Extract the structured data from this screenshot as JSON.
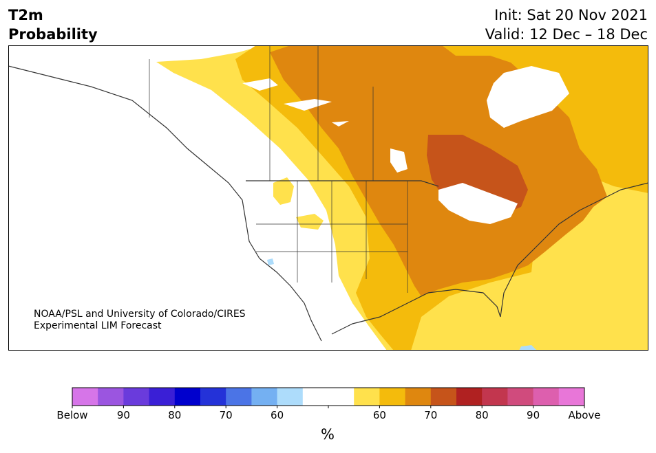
{
  "header": {
    "variable_line1": "T2m",
    "variable_line2": "Probability",
    "init_line": "Init: Sat 20 Nov 2021",
    "valid_line": "Valid: 12 Dec – 18 Dec"
  },
  "credit": {
    "line1": "NOAA/PSL and University of Colorado/CIRES",
    "line2": "Experimental LIM Forecast"
  },
  "legend": {
    "unit": "%",
    "tick_labels": [
      "Below",
      "90",
      "80",
      "70",
      "60",
      "",
      "60",
      "70",
      "80",
      "90",
      "Above"
    ],
    "colors": [
      "#d675e8",
      "#9b55e0",
      "#6a3bdc",
      "#3a1fd6",
      "#0000cd",
      "#2432d8",
      "#4b74e6",
      "#74b0f2",
      "#addcfb",
      "#ffffff",
      "#ffffff",
      "#ffe14c",
      "#f4bb0c",
      "#df870f",
      "#c6541a",
      "#b02121",
      "#c2364e",
      "#d04b7d",
      "#dd5fae",
      "#e876d8"
    ]
  },
  "map": {
    "colors": {
      "p60": "#ffe14c",
      "p65": "#f4bb0c",
      "p70": "#df870f",
      "p75": "#c6541a",
      "below60": "#addcfb",
      "outline": "#333333"
    }
  }
}
